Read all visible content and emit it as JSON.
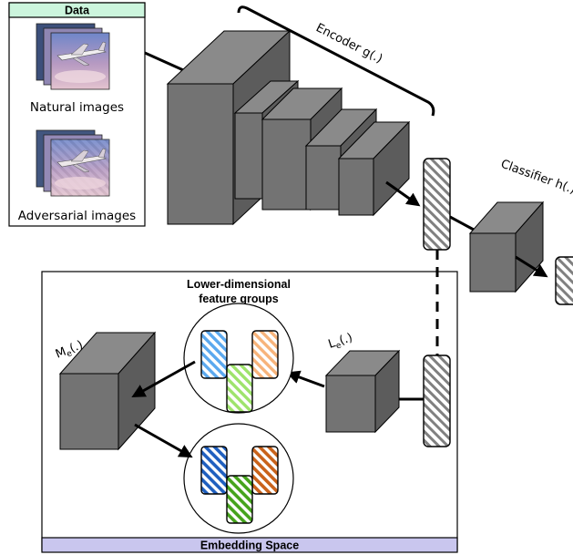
{
  "data_panel": {
    "header": "Data",
    "natural_label": "Natural images",
    "adversarial_label": "Adversarial images"
  },
  "encoder": {
    "label": "Encoder g(.)"
  },
  "classifier": {
    "label": "Classifier h(.)"
  },
  "embedding": {
    "footer": "Embedding Space",
    "groups_title_line1": "Lower-dimensional",
    "groups_title_line2": "feature groups",
    "me_base": "M",
    "me_sub": "e",
    "me_tail": "(.)",
    "le_base": "L",
    "le_sub": "e",
    "le_tail": "(.)"
  },
  "colors": {
    "block_front": "#737373",
    "block_top": "#8a8a8a",
    "block_side": "#5c5c5c",
    "data_header_bg": "#ccf5dd",
    "embedding_footer_bg": "#c9c6ee",
    "light_blue": "#5aa8ee",
    "light_green": "#9ee36b",
    "light_orange": "#f7b37a",
    "dark_blue": "#1f5fbf",
    "dark_green": "#45a31c",
    "dark_orange": "#c9621a"
  }
}
